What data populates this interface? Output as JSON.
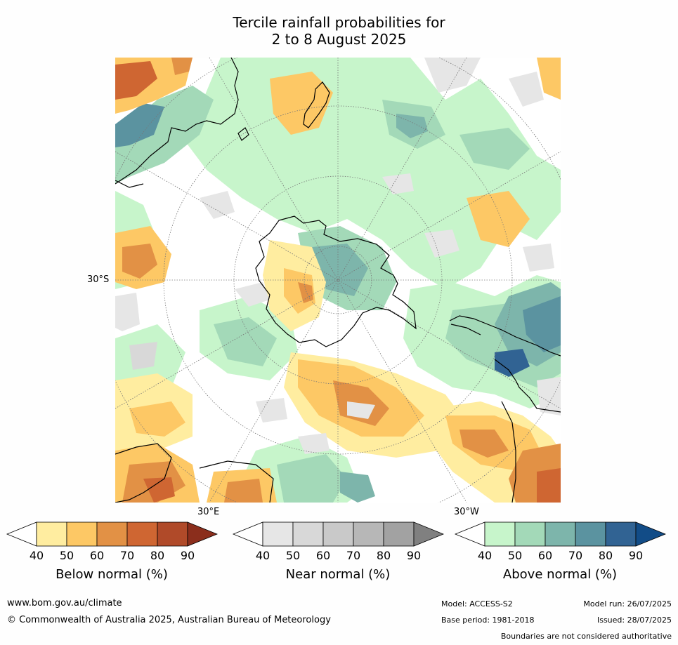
{
  "title_line1": "Tercile rainfall probabilities for",
  "title_line2": "2 to 8 August 2025",
  "axis_labels": {
    "lat": "30°S",
    "lon_east": "30°E",
    "lon_west": "30°W"
  },
  "colorbars": [
    {
      "title": "Below normal (%)",
      "ticks": [
        "40",
        "50",
        "60",
        "70",
        "80",
        "90"
      ],
      "colors": [
        "#ffeda0",
        "#fdc865",
        "#e29145",
        "#cf6632",
        "#b04a29",
        "#8b2e1c"
      ]
    },
    {
      "title": "Near normal (%)",
      "ticks": [
        "40",
        "50",
        "60",
        "70",
        "80",
        "90"
      ],
      "colors": [
        "#e6e6e6",
        "#d8d8d8",
        "#c9c9c9",
        "#b7b7b7",
        "#a2a2a2",
        "#808080"
      ]
    },
    {
      "title": "Above normal (%)",
      "ticks": [
        "40",
        "50",
        "60",
        "70",
        "80",
        "90"
      ],
      "colors": [
        "#c7f5cb",
        "#a3d9b8",
        "#7db5ab",
        "#5b93a0",
        "#316393",
        "#124c87"
      ]
    }
  ],
  "footer": {
    "website": "www.bom.gov.au/climate",
    "copyright": "© Commonwealth of Australia 2025, Australian Bureau of Meteorology",
    "model": "Model: ACCESS-S2",
    "base_period": "Base period: 1981-2018",
    "model_run": "Model run: 26/07/2025",
    "issued": "Issued: 28/07/2025",
    "disclaimer": "Boundaries are not considered authoritative"
  }
}
